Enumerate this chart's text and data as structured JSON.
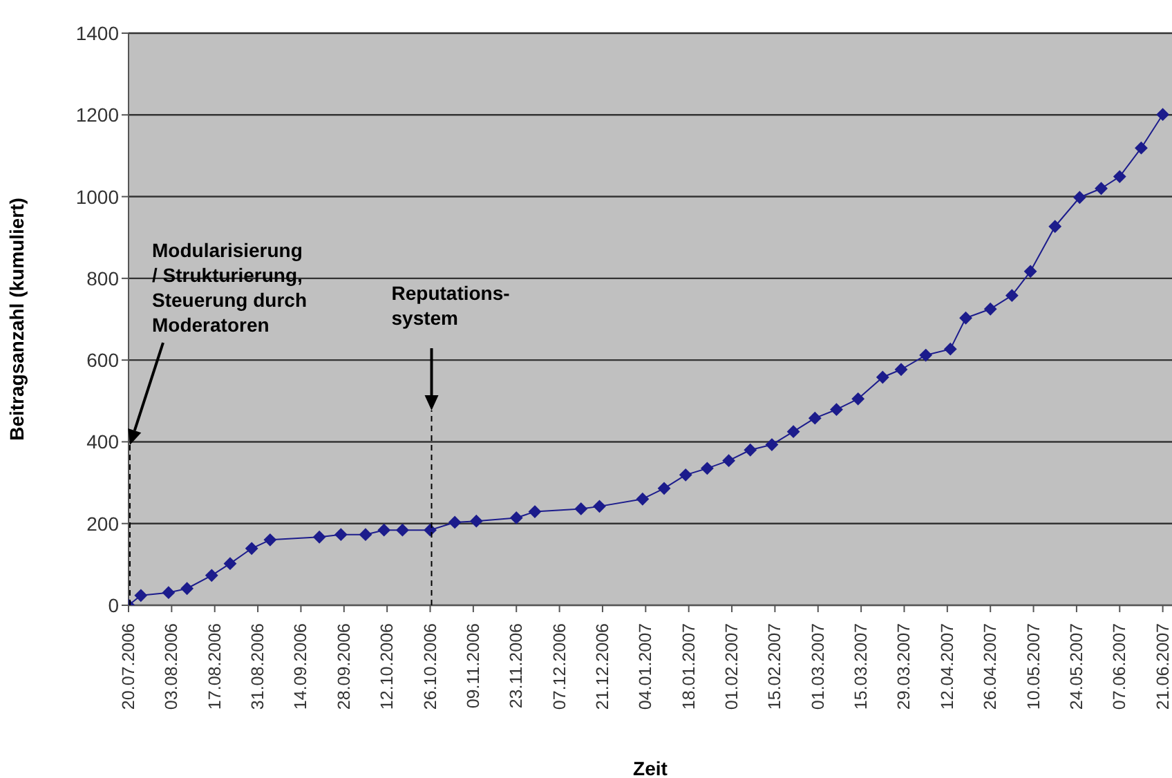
{
  "chart_data": {
    "type": "line",
    "xlabel": "Zeit",
    "ylabel": "Beitragsanzahl (kumuliert)",
    "x": [
      "2006-07-20",
      "2006-07-24",
      "2006-08-02",
      "2006-08-08",
      "2006-08-16",
      "2006-08-22",
      "2006-08-29",
      "2006-09-04",
      "2006-09-20",
      "2006-09-27",
      "2006-10-05",
      "2006-10-11",
      "2006-10-17",
      "2006-10-26",
      "2006-11-03",
      "2006-11-10",
      "2006-11-23",
      "2006-11-29",
      "2006-12-14",
      "2006-12-20",
      "2007-01-03",
      "2007-01-10",
      "2007-01-17",
      "2007-01-24",
      "2007-01-31",
      "2007-02-07",
      "2007-02-14",
      "2007-02-21",
      "2007-02-28",
      "2007-03-07",
      "2007-03-14",
      "2007-03-22",
      "2007-03-28",
      "2007-04-05",
      "2007-04-13",
      "2007-04-18",
      "2007-04-26",
      "2007-05-03",
      "2007-05-09",
      "2007-05-17",
      "2007-05-25",
      "2007-06-01",
      "2007-06-07",
      "2007-06-14",
      "2007-06-21"
    ],
    "series": [
      {
        "color": "#1c1c8c",
        "values": [
          0,
          24,
          31,
          41,
          73,
          102,
          139,
          160,
          167,
          173,
          173,
          184,
          184,
          184,
          203,
          206,
          214,
          229,
          236,
          242,
          260,
          286,
          319,
          335,
          354,
          380,
          393,
          425,
          458,
          479,
          505,
          558,
          577,
          612,
          627,
          703,
          725,
          758,
          817,
          927,
          998,
          1020,
          1049,
          1119,
          1201
        ]
      }
    ],
    "xlim": [
      "2006-07-20",
      "2007-06-24"
    ],
    "xticks": [
      {
        "value": "2006-07-20",
        "label": "20.07.2006"
      },
      {
        "value": "2006-08-03",
        "label": "03.08.2006"
      },
      {
        "value": "2006-08-17",
        "label": "17.08.2006"
      },
      {
        "value": "2006-08-31",
        "label": "31.08.2006"
      },
      {
        "value": "2006-09-14",
        "label": "14.09.2006"
      },
      {
        "value": "2006-09-28",
        "label": "28.09.2006"
      },
      {
        "value": "2006-10-12",
        "label": "12.10.2006"
      },
      {
        "value": "2006-10-26",
        "label": "26.10.2006"
      },
      {
        "value": "2006-11-09",
        "label": "09.11.2006"
      },
      {
        "value": "2006-11-23",
        "label": "23.11.2006"
      },
      {
        "value": "2006-12-07",
        "label": "07.12.2006"
      },
      {
        "value": "2006-12-21",
        "label": "21.12.2006"
      },
      {
        "value": "2007-01-04",
        "label": "04.01.2007"
      },
      {
        "value": "2007-01-18",
        "label": "18.01.2007"
      },
      {
        "value": "2007-02-01",
        "label": "01.02.2007"
      },
      {
        "value": "2007-02-15",
        "label": "15.02.2007"
      },
      {
        "value": "2007-03-01",
        "label": "01.03.2007"
      },
      {
        "value": "2007-03-15",
        "label": "15.03.2007"
      },
      {
        "value": "2007-03-29",
        "label": "29.03.2007"
      },
      {
        "value": "2007-04-12",
        "label": "12.04.2007"
      },
      {
        "value": "2007-04-26",
        "label": "26.04.2007"
      },
      {
        "value": "2007-05-10",
        "label": "10.05.2007"
      },
      {
        "value": "2007-05-24",
        "label": "24.05.2007"
      },
      {
        "value": "2007-06-07",
        "label": "07.06.2007"
      },
      {
        "value": "2007-06-21",
        "label": "21.06.2007"
      }
    ],
    "ylim": [
      0,
      1400
    ],
    "yticks": [
      0,
      200,
      400,
      600,
      800,
      1000,
      1200,
      1400
    ],
    "grid": "y",
    "marker": "diamond",
    "line_style": "solid",
    "ref_lines": [
      {
        "axis": "x",
        "value": "2006-07-20",
        "line_style": "dashed",
        "color": "#000000"
      },
      {
        "axis": "x",
        "value": "2006-10-26",
        "line_style": "dashed",
        "color": "#000000"
      }
    ],
    "annotations": [
      "Modularisierung\n/ Strukturierung,\nSteuerung durch\nModeratoren",
      "Reputations-\nsystem"
    ]
  }
}
